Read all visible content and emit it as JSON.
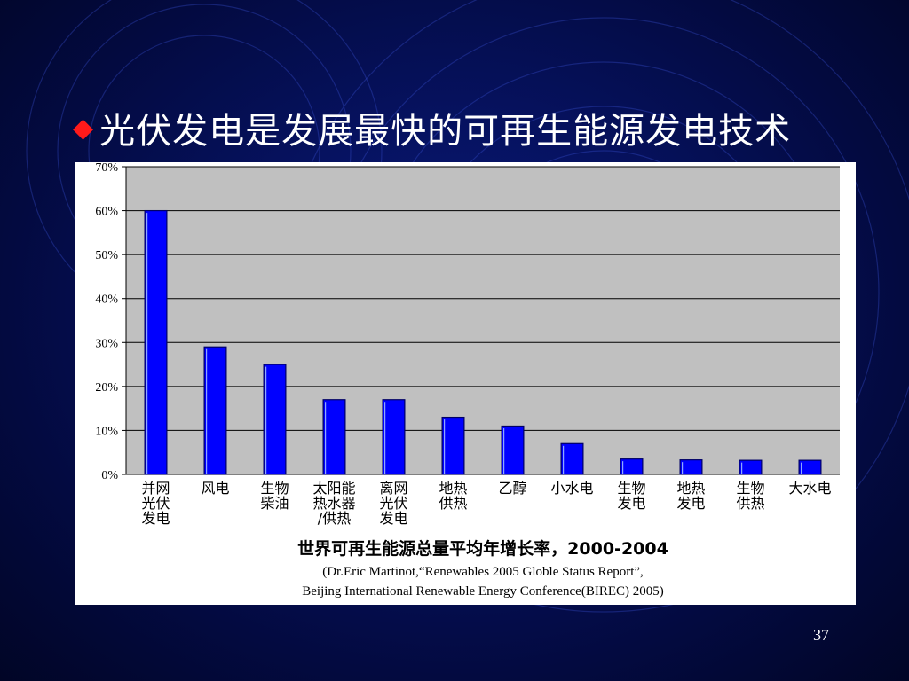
{
  "slide": {
    "title": "光伏发电是发展最快的可再生能源发电技术",
    "bullet_icon": "diamond-bullet-icon",
    "bullet_color": "#ff1a1a",
    "page_number": "37"
  },
  "chart_data": {
    "type": "bar",
    "title": "世界可再生能源总量平均年增长率，2000-2004",
    "source_lines": [
      "(Dr.Eric Martinot,“Renewables 2005 Globle Status Report”,",
      "Beijing International Renewable Energy Conference(BIREC) 2005)"
    ],
    "categories": [
      [
        "并网",
        "光伏",
        "发电"
      ],
      [
        "风电"
      ],
      [
        "生物",
        "柴油"
      ],
      [
        "太阳能",
        "热水器",
        "/供热"
      ],
      [
        "离网",
        "光伏",
        "发电"
      ],
      [
        "地热",
        "供热"
      ],
      [
        "乙醇"
      ],
      [
        "小水电"
      ],
      [
        "生物",
        "发电"
      ],
      [
        "地热",
        "发电"
      ],
      [
        "生物",
        "供热"
      ],
      [
        "大水电"
      ]
    ],
    "values": [
      60,
      29,
      25,
      17,
      17,
      13,
      11,
      7,
      3.5,
      3.3,
      3.2,
      3.2
    ],
    "ylim": [
      0,
      70
    ],
    "yticks": [
      "0%",
      "10%",
      "20%",
      "30%",
      "40%",
      "50%",
      "60%",
      "70%"
    ],
    "grid": true,
    "bar_color": "#0000ff",
    "plot_bg": "#c0c0c0"
  }
}
